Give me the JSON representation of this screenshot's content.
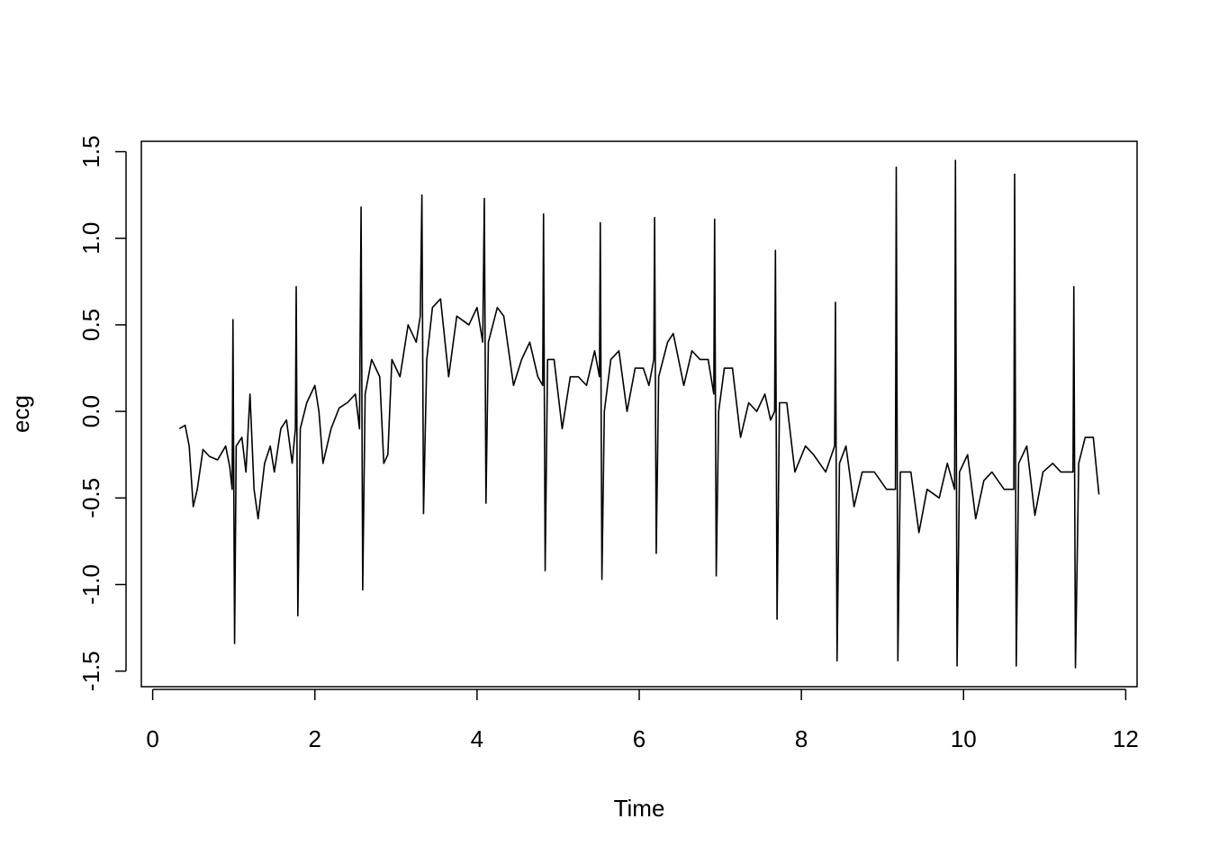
{
  "chart_data": {
    "type": "line",
    "xlabel": "Time",
    "ylabel": "ecg",
    "color": "#000000",
    "x": [
      0.33,
      0.4,
      0.45,
      0.5,
      0.55,
      0.62,
      0.7,
      0.8,
      0.9,
      0.95,
      0.98,
      0.99,
      1.01,
      1.03,
      1.1,
      1.15,
      1.2,
      1.25,
      1.3,
      1.38,
      1.45,
      1.5,
      1.58,
      1.65,
      1.72,
      1.76,
      1.77,
      1.79,
      1.82,
      1.9,
      2.0,
      2.05,
      2.1,
      2.2,
      2.3,
      2.4,
      2.5,
      2.55,
      2.57,
      2.59,
      2.62,
      2.7,
      2.8,
      2.85,
      2.9,
      2.95,
      3.05,
      3.15,
      3.25,
      3.3,
      3.32,
      3.34,
      3.38,
      3.45,
      3.55,
      3.65,
      3.75,
      3.9,
      4.0,
      4.07,
      4.09,
      4.11,
      4.14,
      4.25,
      4.33,
      4.45,
      4.55,
      4.65,
      4.75,
      4.81,
      4.82,
      4.84,
      4.87,
      4.95,
      5.05,
      5.15,
      5.25,
      5.35,
      5.45,
      5.51,
      5.52,
      5.54,
      5.57,
      5.65,
      5.75,
      5.85,
      5.95,
      6.05,
      6.12,
      6.18,
      6.19,
      6.21,
      6.24,
      6.35,
      6.42,
      6.55,
      6.65,
      6.75,
      6.85,
      6.92,
      6.93,
      6.95,
      6.98,
      7.05,
      7.15,
      7.25,
      7.35,
      7.45,
      7.55,
      7.62,
      7.67,
      7.68,
      7.7,
      7.73,
      7.82,
      7.92,
      8.05,
      8.15,
      8.3,
      8.41,
      8.42,
      8.44,
      8.47,
      8.55,
      8.65,
      8.75,
      8.9,
      9.05,
      9.16,
      9.17,
      9.19,
      9.22,
      9.35,
      9.45,
      9.55,
      9.7,
      9.8,
      9.89,
      9.9,
      9.92,
      9.95,
      10.05,
      10.15,
      10.25,
      10.35,
      10.5,
      10.62,
      10.63,
      10.65,
      10.68,
      10.78,
      10.88,
      10.98,
      11.1,
      11.2,
      11.3,
      11.35,
      11.36,
      11.38,
      11.42,
      11.5,
      11.6,
      11.67
    ],
    "values": [
      -0.1,
      -0.08,
      -0.2,
      -0.55,
      -0.45,
      -0.22,
      -0.26,
      -0.28,
      -0.2,
      -0.32,
      -0.45,
      0.53,
      -1.34,
      -0.2,
      -0.15,
      -0.35,
      0.1,
      -0.45,
      -0.62,
      -0.3,
      -0.2,
      -0.35,
      -0.1,
      -0.05,
      -0.3,
      -0.1,
      0.72,
      -1.18,
      -0.1,
      0.05,
      0.15,
      0.0,
      -0.3,
      -0.1,
      0.02,
      0.05,
      0.1,
      -0.1,
      1.18,
      -1.03,
      0.1,
      0.3,
      0.2,
      -0.3,
      -0.25,
      0.3,
      0.2,
      0.5,
      0.4,
      0.55,
      1.25,
      -0.59,
      0.3,
      0.6,
      0.65,
      0.2,
      0.55,
      0.5,
      0.6,
      0.4,
      1.23,
      -0.53,
      0.4,
      0.6,
      0.55,
      0.15,
      0.3,
      0.4,
      0.2,
      0.15,
      1.14,
      -0.92,
      0.3,
      0.3,
      -0.1,
      0.2,
      0.2,
      0.15,
      0.35,
      0.2,
      1.09,
      -0.97,
      0.0,
      0.3,
      0.35,
      0.0,
      0.25,
      0.25,
      0.15,
      0.3,
      1.12,
      -0.82,
      0.2,
      0.4,
      0.45,
      0.15,
      0.35,
      0.3,
      0.3,
      0.1,
      1.11,
      -0.95,
      0.0,
      0.25,
      0.25,
      -0.15,
      0.05,
      0.0,
      0.1,
      -0.05,
      0.0,
      0.93,
      -1.2,
      0.05,
      0.05,
      -0.35,
      -0.2,
      -0.25,
      -0.35,
      -0.2,
      0.63,
      -1.44,
      -0.3,
      -0.2,
      -0.55,
      -0.35,
      -0.35,
      -0.45,
      -0.45,
      1.41,
      -1.44,
      -0.35,
      -0.35,
      -0.7,
      -0.45,
      -0.5,
      -0.3,
      -0.45,
      1.45,
      -1.47,
      -0.35,
      -0.25,
      -0.62,
      -0.4,
      -0.35,
      -0.45,
      -0.45,
      1.37,
      -1.47,
      -0.3,
      -0.2,
      -0.6,
      -0.35,
      -0.3,
      -0.35,
      -0.35,
      -0.35,
      0.72,
      -1.48,
      -0.3,
      -0.15,
      -0.15,
      -0.48
    ],
    "xlim": [
      -0.14,
      12.14
    ],
    "ylim": [
      -1.59,
      1.56
    ],
    "xticks": [
      0,
      2,
      4,
      6,
      8,
      10,
      12
    ],
    "yticks": [
      -1.5,
      {
        "value": -1,
        "label": "-1.0"
      },
      -0.5,
      {
        "value": 0,
        "label": "0.0"
      },
      0.5,
      {
        "value": 1,
        "label": "1.0"
      },
      1.5
    ]
  }
}
